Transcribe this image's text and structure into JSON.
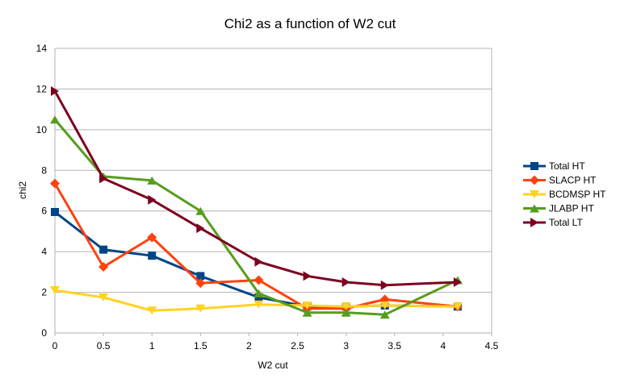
{
  "chart_data": {
    "type": "line",
    "title": "Chi2 as a function of W2 cut",
    "xlabel": "W2 cut",
    "ylabel": "chi2",
    "xlim": [
      0,
      4.5
    ],
    "ylim": [
      0,
      14
    ],
    "x_ticks": [
      0,
      0.5,
      1,
      1.5,
      2,
      2.5,
      3,
      3.5,
      4,
      4.5
    ],
    "x_tick_labels": [
      "0",
      "0.5",
      "1",
      "1.5",
      "2",
      "2.5",
      "3",
      "3.5",
      "4",
      "4.5"
    ],
    "y_ticks": [
      0,
      2,
      4,
      6,
      8,
      10,
      12,
      14
    ],
    "y_tick_labels": [
      "0",
      "2",
      "4",
      "6",
      "8",
      "10",
      "12",
      "14"
    ],
    "grid": "horizontal",
    "legend_position": "right",
    "series": [
      {
        "name": "Total HT",
        "color": "#004586",
        "marker": "square",
        "x": [
          0,
          0.5,
          1,
          1.5,
          2.1,
          2.6,
          3,
          3.4,
          4.15
        ],
        "y": [
          5.95,
          4.1,
          3.8,
          2.8,
          1.75,
          1.3,
          1.3,
          1.35,
          1.3
        ]
      },
      {
        "name": "SLACP HT",
        "color": "#ff420e",
        "marker": "diamond",
        "x": [
          0,
          0.5,
          1,
          1.5,
          2.1,
          2.6,
          3,
          3.4,
          4.15
        ],
        "y": [
          7.35,
          3.25,
          4.7,
          2.45,
          2.6,
          1.2,
          1.2,
          1.65,
          1.3
        ]
      },
      {
        "name": "BCDMSP HT",
        "color": "#ffd320",
        "marker": "triangle-down",
        "x": [
          0,
          0.5,
          1,
          1.5,
          2.1,
          2.6,
          3,
          3.4,
          4.15
        ],
        "y": [
          2.1,
          1.75,
          1.1,
          1.2,
          1.4,
          1.35,
          1.3,
          1.35,
          1.3
        ]
      },
      {
        "name": "JLABP HT",
        "color": "#579d1c",
        "marker": "triangle-up",
        "x": [
          0,
          0.5,
          1,
          1.5,
          2.1,
          2.6,
          3,
          3.4,
          4.15
        ],
        "y": [
          10.5,
          7.7,
          7.5,
          6.0,
          1.95,
          1.0,
          1.0,
          0.9,
          2.6
        ]
      },
      {
        "name": "Total LT",
        "color": "#7e0021",
        "marker": "triangle-right",
        "x": [
          0,
          0.5,
          1,
          1.5,
          2.1,
          2.6,
          3,
          3.4,
          4.15
        ],
        "y": [
          11.9,
          7.6,
          6.55,
          5.15,
          3.5,
          2.8,
          2.5,
          2.35,
          2.5
        ]
      }
    ]
  }
}
